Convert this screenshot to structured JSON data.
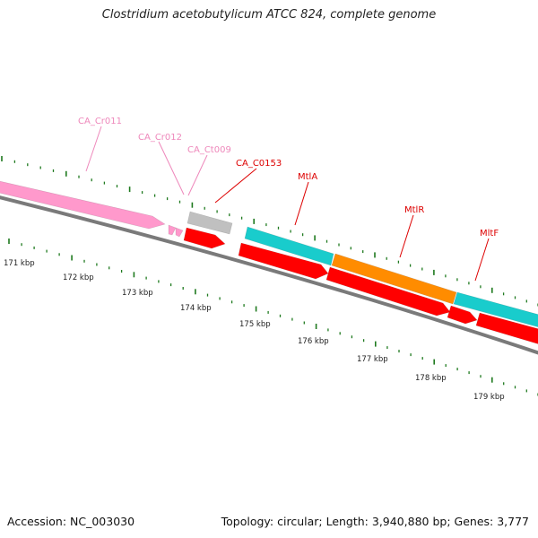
{
  "title": "Clostridium acetobutylicum ATCC 824, complete genome",
  "footer": {
    "accession": "Accession: NC_003030",
    "summary": "Topology: circular; Length: 3,940,880 bp; Genes: 3,777"
  },
  "colors": {
    "backbone": "#7a7a7a",
    "tick": "#1f7a1f",
    "ruler_label": "#222222",
    "cds": "#ff0000",
    "pseudo": "#c0c0c0",
    "pink": "#ff99cc",
    "cyan": "#19cccc",
    "orange": "#ff8c00",
    "label_pink": "#ee88bb",
    "label_red": "#dd0000"
  },
  "ruler": {
    "labels": [
      "171 kbp",
      "172 kbp",
      "173 kbp",
      "174 kbp",
      "175 kbp",
      "176 kbp",
      "177 kbp",
      "178 kbp",
      "179 kbp"
    ]
  },
  "features": [
    {
      "name": "CA_Cr011",
      "type": "ncRNA",
      "color_key": "pink",
      "label_color_key": "label_pink"
    },
    {
      "name": "CA_Cr012",
      "type": "ncRNA",
      "color_key": "pink",
      "label_color_key": "label_pink"
    },
    {
      "name": "CA_Ct009",
      "type": "tRNA",
      "color_key": "pseudo",
      "label_color_key": "label_pink"
    },
    {
      "name": "CA_C0153",
      "type": "CDS",
      "color_key": "cds",
      "label_color_key": "label_red"
    },
    {
      "name": "MtlA",
      "type": "gene",
      "color_key": "cyan",
      "label_color_key": "label_red"
    },
    {
      "name": "MtlR",
      "type": "gene",
      "color_key": "orange",
      "label_color_key": "label_red"
    },
    {
      "name": "MltF",
      "type": "gene",
      "color_key": "cyan",
      "label_color_key": "label_red"
    }
  ]
}
